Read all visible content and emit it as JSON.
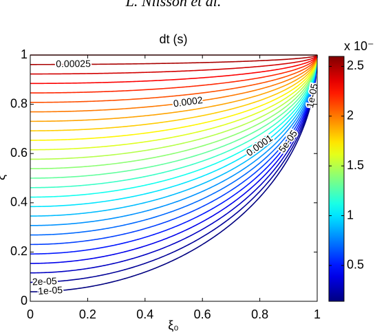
{
  "header": "L. Nilsson et al.",
  "chart_data": {
    "type": "contour",
    "title": "dt (s)",
    "x_label": "ξ₀",
    "y_label": "ξ",
    "xlim": [
      0,
      1
    ],
    "ylim": [
      0,
      1
    ],
    "xticks": [
      0,
      0.2,
      0.4,
      0.6,
      0.8,
      1
    ],
    "yticks": [
      0,
      0.2,
      0.4,
      0.6,
      0.8,
      1
    ],
    "levels": [
      1e-05,
      2e-05,
      3e-05,
      4e-05,
      5e-05,
      6e-05,
      7e-05,
      8e-05,
      9e-05,
      0.0001,
      0.00011,
      0.00012,
      0.00013,
      0.00014,
      0.00015,
      0.00016,
      0.00017,
      0.00018,
      0.00019,
      0.0002,
      0.00021,
      0.00022,
      0.00023,
      0.00024,
      0.00025,
      0.00026
    ],
    "contour_labels": [
      {
        "value": 0.00025,
        "label": "0.00025"
      },
      {
        "value": 0.0002,
        "label": "0.0002"
      },
      {
        "value": 0.0001,
        "label": "0.0001"
      },
      {
        "value": 5e-05,
        "label": "5e-05"
      },
      {
        "value": 1e-05,
        "label": "1e-05"
      },
      {
        "value": 2e-05,
        "label": "2e-05"
      },
      {
        "value": 1e-05,
        "label": "1e-05"
      }
    ],
    "colormap": "jet",
    "clim": [
      1.4e-05,
      0.00026
    ],
    "colorbar_label": "x 10⁻",
    "colorbar_ticks": [
      {
        "value": 5e-05,
        "label": "0.5"
      },
      {
        "value": 0.0001,
        "label": "1"
      },
      {
        "value": 0.00015,
        "label": "1.5"
      },
      {
        "value": 0.0002,
        "label": "2"
      },
      {
        "value": 0.00025,
        "label": "2.5"
      }
    ]
  }
}
